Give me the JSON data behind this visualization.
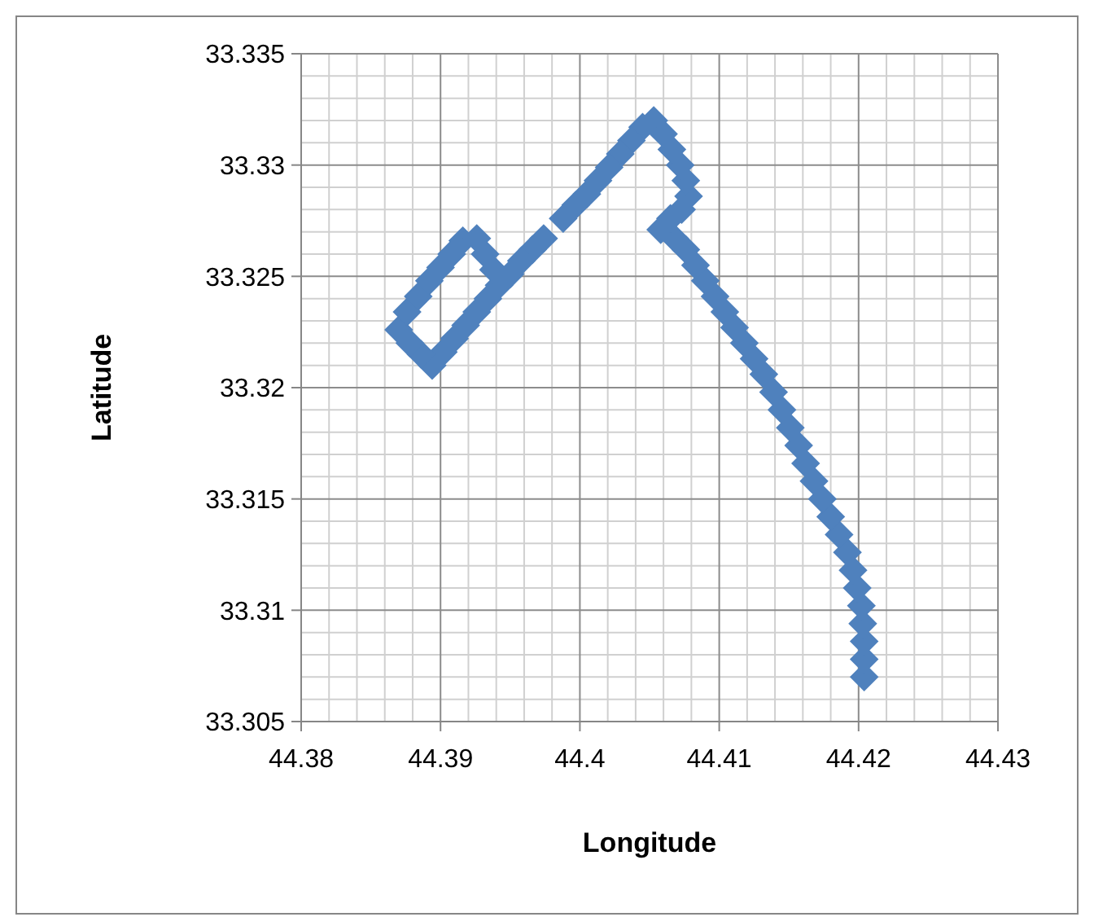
{
  "chart_data": {
    "type": "scatter",
    "xlabel": "Longitude",
    "ylabel": "Latitude",
    "marker": "diamond",
    "grid": true,
    "xlim": [
      44.38,
      44.43
    ],
    "xticks": [
      44.38,
      44.39,
      44.4,
      44.41,
      44.42,
      44.43
    ],
    "ylim": [
      33.305,
      33.335
    ],
    "yticks": [
      33.305,
      33.31,
      33.315,
      33.32,
      33.325,
      33.33,
      33.335
    ],
    "series": [
      {
        "color": "#4f81bd",
        "x": [
          44.4204,
          44.4204,
          44.4204,
          44.4203,
          44.4202,
          44.4199,
          44.4196,
          44.4192,
          44.4186,
          44.418,
          44.4174,
          44.4168,
          44.4162,
          44.4157,
          44.4151,
          44.4145,
          44.4139,
          44.4132,
          44.4125,
          44.4118,
          44.4111,
          44.4104,
          44.4097,
          44.409,
          44.4083,
          44.4076,
          44.4068,
          44.4058,
          44.4065,
          44.4073,
          44.4078,
          44.4076,
          44.4072,
          44.4066,
          44.406,
          44.4053,
          44.4045,
          44.4037,
          44.4029,
          44.4021,
          44.4013,
          44.4005,
          44.3997,
          44.3988,
          44.3974,
          44.3966,
          44.3958,
          44.395,
          44.3942,
          44.3934,
          44.3926,
          44.3918,
          44.391,
          44.3902,
          44.3894,
          44.3886,
          44.3878,
          44.387,
          44.3876,
          44.3884,
          44.3892,
          44.39,
          44.3908,
          44.3916,
          44.3926,
          44.3932,
          44.3938
        ],
        "values": [
          33.307,
          33.3078,
          33.3086,
          33.3094,
          33.3102,
          33.311,
          33.3118,
          33.3126,
          33.3134,
          33.3142,
          33.315,
          33.3158,
          33.3166,
          33.3174,
          33.3182,
          33.319,
          33.3198,
          33.3206,
          33.3213,
          33.322,
          33.3227,
          33.3234,
          33.3241,
          33.3248,
          33.3255,
          33.3262,
          33.3267,
          33.3271,
          33.3276,
          33.328,
          33.3286,
          33.3293,
          33.33,
          33.3307,
          33.3314,
          33.332,
          33.3317,
          33.3311,
          33.3305,
          33.3299,
          33.3293,
          33.3287,
          33.3282,
          33.3276,
          33.3267,
          33.3262,
          33.3257,
          33.3251,
          33.3246,
          33.324,
          33.3234,
          33.3228,
          33.3222,
          33.3216,
          33.321,
          33.3215,
          33.322,
          33.3226,
          33.3234,
          33.3241,
          33.3248,
          33.3254,
          33.326,
          33.3266,
          33.3267,
          33.326,
          33.3253
        ]
      }
    ]
  }
}
